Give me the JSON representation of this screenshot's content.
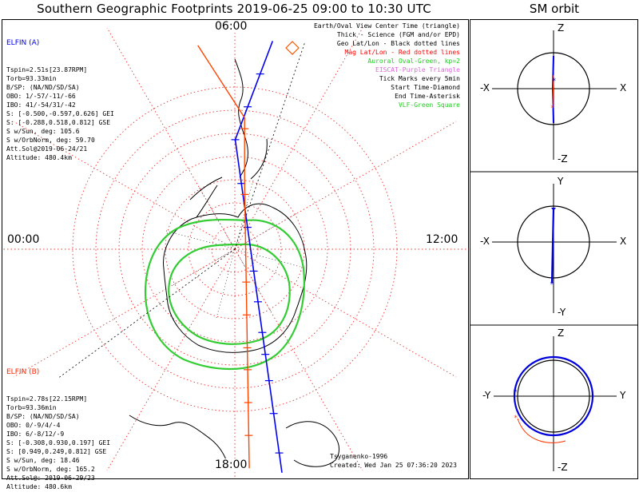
{
  "title": "Southern Geographic Footprints 2019-06-25 09:00 to 10:30 UTC",
  "sm_title": "SM orbit",
  "time_labels": {
    "top": "06:00",
    "left": "00:00",
    "right": "12:00",
    "bottom": "18:00"
  },
  "elfin_a": {
    "header": "ELFIN (A)",
    "lines": [
      "Tspin=2.51s[23.87RPM]",
      "Torb=93.33min",
      "B/SP: (NA/ND/SD/SA)",
      "OBO: 1/-57/-11/-66",
      "IBO: 41/-54/31/-42",
      "S: [-0.500,-0.597,0.626] GEI",
      "S: [-0.288,0.518,0.812] GSE",
      "S w/Sun, deg: 105.6",
      "S w/OrbNorm, deg: 59.70",
      "Att.Sol@2019-06-24/21",
      "Altitude: 480.4km"
    ],
    "color": "#0000ee"
  },
  "elfin_b": {
    "header": "ELFIN (B)",
    "lines": [
      "Tspin=2.78s[22.15RPM]",
      "Torb=93.36min",
      "B/SP: (NA/ND/SD/SA)",
      "OBO: 0/-9/4/-4",
      "IBO: 6/-8/12/-9",
      "S: [-0.308,0.930,0.197] GEI",
      "S: [0.949,0.249,0.812] GSE",
      "S w/Sun, deg: 18.46",
      "S w/OrbNorm, deg: 165.2",
      "Att.Sol@: 2019-06-29/23",
      "Altitude: 480.6km"
    ],
    "color": "#ff3300"
  },
  "legend": [
    {
      "text": "Earth/Oval View Center Time (triangle)",
      "color": "#000000"
    },
    {
      "text": "Thick - Science (FGM and/or EPD)",
      "color": "#000000"
    },
    {
      "text": "Geo Lat/Lon - Black dotted lines",
      "color": "#000000"
    },
    {
      "text": "Mag Lat/Lon - Red dotted lines",
      "color": "#ff0000"
    },
    {
      "text": "Auroral Oval-Green, kp=2",
      "color": "#22cc22"
    },
    {
      "text": "EISCAT-Purple Triangle",
      "color": "#dd66dd"
    },
    {
      "text": "Tick Marks every 5min",
      "color": "#000000"
    },
    {
      "text": "Start Time-Diamond",
      "color": "#000000"
    },
    {
      "text": "End Time-Asterisk",
      "color": "#000000"
    },
    {
      "text": "VLF-Green Square",
      "color": "#22cc22"
    }
  ],
  "credit": {
    "line1": "Tsyganenko-1996",
    "line2": "Created: Wed Jan 25 07:36:20 2023"
  },
  "sm_panels": [
    {
      "top": "Z",
      "bottom": "-Z",
      "left": "-X",
      "right": "X"
    },
    {
      "top": "Y",
      "bottom": "-Y",
      "left": "-X",
      "right": "X"
    },
    {
      "top": "Z",
      "bottom": "-Z",
      "left": "-Y",
      "right": "Y"
    }
  ],
  "chart_data": {
    "type": "map",
    "projection": "south-polar",
    "lat_rings_deg": [
      -80,
      -70,
      -60,
      -50,
      -40,
      -30,
      -20
    ],
    "series": [
      {
        "name": "ELFIN (A)",
        "color": "#0000ee",
        "path": [
          [
            0.95,
            0.58
          ],
          [
            0.5,
            0.5
          ],
          [
            -1.02,
            0.6
          ]
        ],
        "ticks": [
          -0.93,
          -0.75,
          -0.6,
          -0.48,
          -0.38,
          -0.24,
          -0.1,
          0.1,
          0.3,
          0.5,
          0.65,
          0.8
        ]
      },
      {
        "name": "ELFIN (B)",
        "color": "#ff4400",
        "path": [
          [
            0.93,
            0.42
          ],
          [
            0.6,
            0.52
          ],
          [
            0.3,
            0.52
          ],
          [
            -1.0,
            0.53
          ]
        ],
        "ticks": [
          -0.85,
          -0.7,
          -0.55,
          -0.45,
          -0.3,
          -0.15,
          0.25,
          0.55
        ]
      }
    ]
  }
}
